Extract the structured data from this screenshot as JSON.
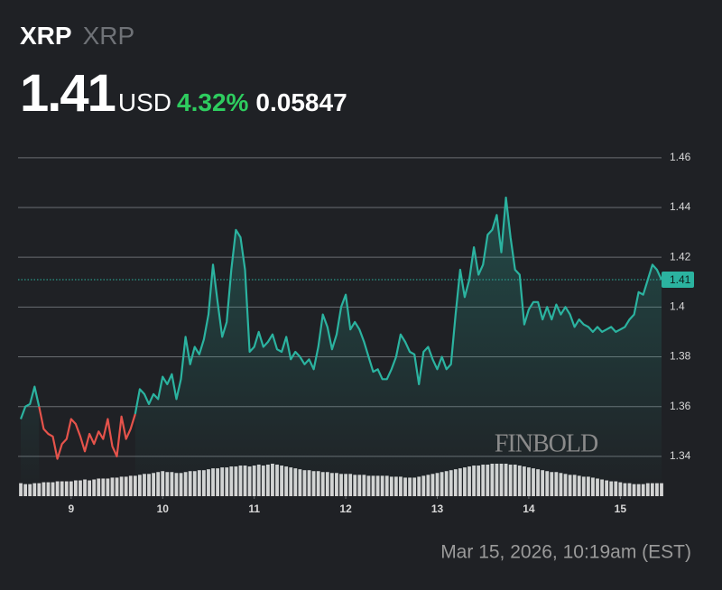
{
  "chart_data": {
    "type": "line",
    "header": {
      "symbol": "XRP",
      "name": "XRP",
      "price": "1.41",
      "currency": "USD",
      "change_percent": "4.32%",
      "change": "0.05847"
    },
    "timestamp": "Mar 15, 2026, 10:19am (EST)",
    "watermark": "FINBOLD",
    "x": [
      8.45,
      8.5,
      8.55,
      8.6,
      8.65,
      8.7,
      8.75,
      8.8,
      8.85,
      8.9,
      8.95,
      9,
      9.05,
      9.1,
      9.15,
      9.2,
      9.25,
      9.3,
      9.35,
      9.4,
      9.45,
      9.5,
      9.55,
      9.6,
      9.65,
      9.7,
      9.75,
      9.8,
      9.85,
      9.9,
      9.95,
      10,
      10.05,
      10.1,
      10.15,
      10.2,
      10.25,
      10.3,
      10.35,
      10.4,
      10.45,
      10.5,
      10.55,
      10.6,
      10.65,
      10.7,
      10.75,
      10.8,
      10.85,
      10.9,
      10.95,
      11,
      11.05,
      11.1,
      11.15,
      11.2,
      11.25,
      11.3,
      11.35,
      11.4,
      11.45,
      11.5,
      11.55,
      11.6,
      11.65,
      11.7,
      11.75,
      11.8,
      11.85,
      11.9,
      11.95,
      12,
      12.05,
      12.1,
      12.15,
      12.2,
      12.25,
      12.3,
      12.35,
      12.4,
      12.45,
      12.5,
      12.55,
      12.6,
      12.65,
      12.7,
      12.75,
      12.8,
      12.85,
      12.9,
      12.95,
      13,
      13.05,
      13.1,
      13.15,
      13.2,
      13.25,
      13.3,
      13.35,
      13.4,
      13.45,
      13.5,
      13.55,
      13.6,
      13.65,
      13.7,
      13.75,
      13.8,
      13.85,
      13.9,
      13.95,
      14,
      14.05,
      14.1,
      14.15,
      14.2,
      14.25,
      14.3,
      14.35,
      14.4,
      14.45,
      14.5,
      14.55,
      14.6,
      14.65,
      14.7,
      14.75,
      14.8,
      14.85,
      14.9,
      14.95,
      15,
      15.05,
      15.1,
      15.15,
      15.2,
      15.25,
      15.3,
      15.35,
      15.4,
      15.45
    ],
    "series": [
      {
        "color": "#2bb3a0",
        "values": [
          1.355,
          1.36,
          1.361,
          1.368,
          1.36,
          null,
          null,
          null,
          null,
          null,
          null,
          null,
          null,
          null,
          null,
          null,
          null,
          null,
          null,
          null,
          null,
          null,
          null,
          null,
          null,
          1.357,
          1.367,
          1.365,
          1.361,
          1.365,
          1.363,
          1.372,
          1.369,
          1.373,
          1.363,
          1.371,
          1.388,
          1.377,
          1.384,
          1.381,
          1.387,
          1.397,
          1.417,
          1.402,
          1.388,
          1.394,
          1.415,
          1.431,
          1.428,
          1.415,
          1.382,
          1.384,
          1.39,
          1.384,
          1.386,
          1.389,
          1.383,
          1.382,
          1.388,
          1.379,
          1.382,
          1.38,
          1.377,
          1.379,
          1.375,
          1.384,
          1.397,
          1.392,
          1.383,
          1.389,
          1.4,
          1.405,
          1.391,
          1.394,
          1.391,
          1.386,
          1.38,
          1.374,
          1.375,
          1.371,
          1.371,
          1.375,
          1.38,
          1.389,
          1.386,
          1.382,
          1.381,
          1.369,
          1.382,
          1.384,
          1.379,
          1.375,
          1.38,
          1.375,
          1.377,
          1.397,
          1.415,
          1.404,
          1.411,
          1.424,
          1.413,
          1.417,
          1.429,
          1.431,
          1.437,
          1.422,
          1.444,
          1.428,
          1.415,
          1.413,
          1.393,
          1.399,
          1.402,
          1.402,
          1.395,
          1.4,
          1.395,
          1.401,
          1.397,
          1.4,
          1.397,
          1.392,
          1.395,
          1.393,
          1.392,
          1.39,
          1.392,
          1.39,
          1.391,
          1.392,
          1.39,
          1.391,
          1.392,
          1.395,
          1.397,
          1.406,
          1.405,
          1.411,
          1.417,
          1.415,
          1.411
        ]
      },
      {
        "color": "#e5534b",
        "x": [
          8.65,
          8.7,
          8.75,
          8.8,
          8.85,
          8.9,
          8.95,
          9,
          9.05,
          9.1,
          9.15,
          9.2,
          9.25,
          9.3,
          9.35,
          9.4,
          9.45,
          9.5,
          9.55,
          9.6,
          9.65,
          9.7
        ],
        "values": [
          1.36,
          1.351,
          1.349,
          1.348,
          1.339,
          1.345,
          1.347,
          1.355,
          1.353,
          1.348,
          1.342,
          1.349,
          1.345,
          1.35,
          1.347,
          1.355,
          1.344,
          1.34,
          1.356,
          1.347,
          1.351,
          1.357
        ]
      }
    ],
    "volume": {
      "color": "#d4d4d4",
      "values": [
        14,
        13,
        13,
        14,
        14,
        15,
        15,
        15,
        16,
        16,
        16,
        16,
        17,
        17,
        18,
        17,
        18,
        19,
        19,
        19,
        20,
        20,
        21,
        21,
        22,
        22,
        23,
        24,
        24,
        25,
        26,
        27,
        26,
        26,
        25,
        25,
        26,
        27,
        27,
        28,
        28,
        29,
        30,
        30,
        31,
        31,
        32,
        32,
        33,
        33,
        32,
        33,
        34,
        33,
        34,
        35,
        34,
        33,
        32,
        31,
        30,
        29,
        28,
        28,
        27,
        27,
        26,
        26,
        25,
        25,
        24,
        24,
        24,
        23,
        23,
        23,
        22,
        22,
        22,
        22,
        22,
        21,
        21,
        21,
        20,
        20,
        20,
        21,
        22,
        23,
        24,
        25,
        26,
        27,
        28,
        29,
        30,
        31,
        32,
        33,
        33,
        34,
        34,
        35,
        35,
        35,
        35,
        34,
        34,
        33,
        32,
        31,
        30,
        29,
        28,
        27,
        26,
        26,
        25,
        24,
        23,
        23,
        22,
        21,
        21,
        20,
        19,
        18,
        17,
        16,
        16,
        15,
        14,
        14,
        13,
        13,
        13,
        14,
        14,
        14,
        14
      ]
    },
    "price_line": {
      "value": 1.411,
      "label": "1.41",
      "color": "#2bb3a0"
    },
    "xlim": [
      8.42,
      15.45
    ],
    "xticks": [
      9,
      10,
      11,
      12,
      13,
      14,
      15
    ],
    "ylim": [
      1.324,
      1.469
    ],
    "yticks": [
      1.34,
      1.36,
      1.38,
      1.4,
      1.42,
      1.44,
      1.46
    ],
    "grid": true
  }
}
